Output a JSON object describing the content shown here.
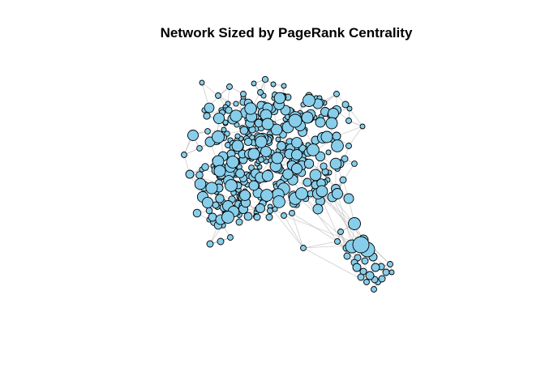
{
  "title": "Network Sized by PageRank Centrality",
  "chart_data": {
    "type": "network",
    "title": "Network Sized by PageRank Centrality",
    "node_fill": "#87CEEB",
    "node_stroke": "#000000",
    "edge_color": "#bdbdbd",
    "background": "#ffffff"
  }
}
